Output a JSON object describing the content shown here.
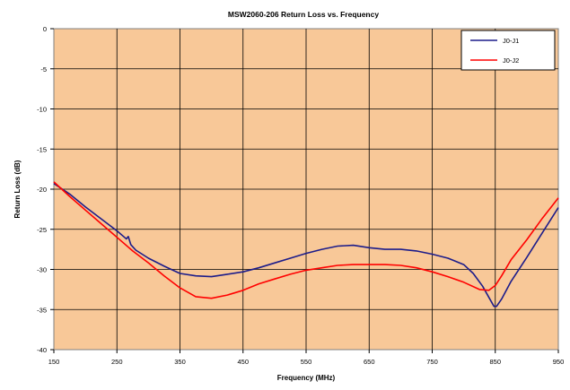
{
  "chart_data": {
    "type": "line",
    "title": "MSW2060-206 Return Loss vs. Frequency",
    "xlabel": "Frequency (MHz)",
    "ylabel": "Return Loss (dB)",
    "xlim": [
      150,
      950
    ],
    "ylim": [
      -40,
      0
    ],
    "xticks": [
      150,
      250,
      350,
      450,
      550,
      650,
      750,
      850,
      950
    ],
    "yticks": [
      0,
      -5,
      -10,
      -15,
      -20,
      -25,
      -30,
      -35,
      -40
    ],
    "grid": true,
    "legend_position": "top-right",
    "plot_background": "#f8c898",
    "series": [
      {
        "name": "J0-J1",
        "color": "#1c1c8a",
        "x": [
          150,
          175,
          200,
          225,
          250,
          262,
          265,
          268,
          272,
          280,
          300,
          325,
          350,
          375,
          400,
          425,
          450,
          475,
          500,
          525,
          550,
          575,
          600,
          625,
          650,
          675,
          700,
          725,
          750,
          775,
          800,
          815,
          830,
          840,
          848,
          852,
          860,
          875,
          900,
          925,
          950
        ],
        "y": [
          -19.3,
          -20.6,
          -22.2,
          -23.7,
          -25.2,
          -26.0,
          -26.2,
          -25.9,
          -26.9,
          -27.6,
          -28.6,
          -29.6,
          -30.5,
          -30.8,
          -30.9,
          -30.6,
          -30.3,
          -29.8,
          -29.2,
          -28.6,
          -28.0,
          -27.5,
          -27.1,
          -27.0,
          -27.3,
          -27.5,
          -27.5,
          -27.7,
          -28.1,
          -28.6,
          -29.4,
          -30.5,
          -32.1,
          -33.5,
          -34.6,
          -34.6,
          -33.7,
          -31.5,
          -28.5,
          -25.4,
          -22.3
        ]
      },
      {
        "name": "J0-J2",
        "color": "#ff0000",
        "x": [
          150,
          175,
          200,
          225,
          250,
          275,
          300,
          325,
          350,
          375,
          400,
          425,
          450,
          475,
          500,
          525,
          550,
          575,
          600,
          625,
          650,
          675,
          700,
          725,
          750,
          775,
          800,
          825,
          840,
          850,
          860,
          875,
          900,
          925,
          950
        ],
        "y": [
          -19.1,
          -20.9,
          -22.6,
          -24.3,
          -26.0,
          -27.7,
          -29.2,
          -30.8,
          -32.3,
          -33.4,
          -33.6,
          -33.2,
          -32.6,
          -31.8,
          -31.2,
          -30.6,
          -30.1,
          -29.8,
          -29.5,
          -29.4,
          -29.4,
          -29.4,
          -29.5,
          -29.8,
          -30.3,
          -30.9,
          -31.6,
          -32.5,
          -32.6,
          -32.0,
          -30.8,
          -28.8,
          -26.3,
          -23.6,
          -21.1
        ]
      }
    ]
  }
}
